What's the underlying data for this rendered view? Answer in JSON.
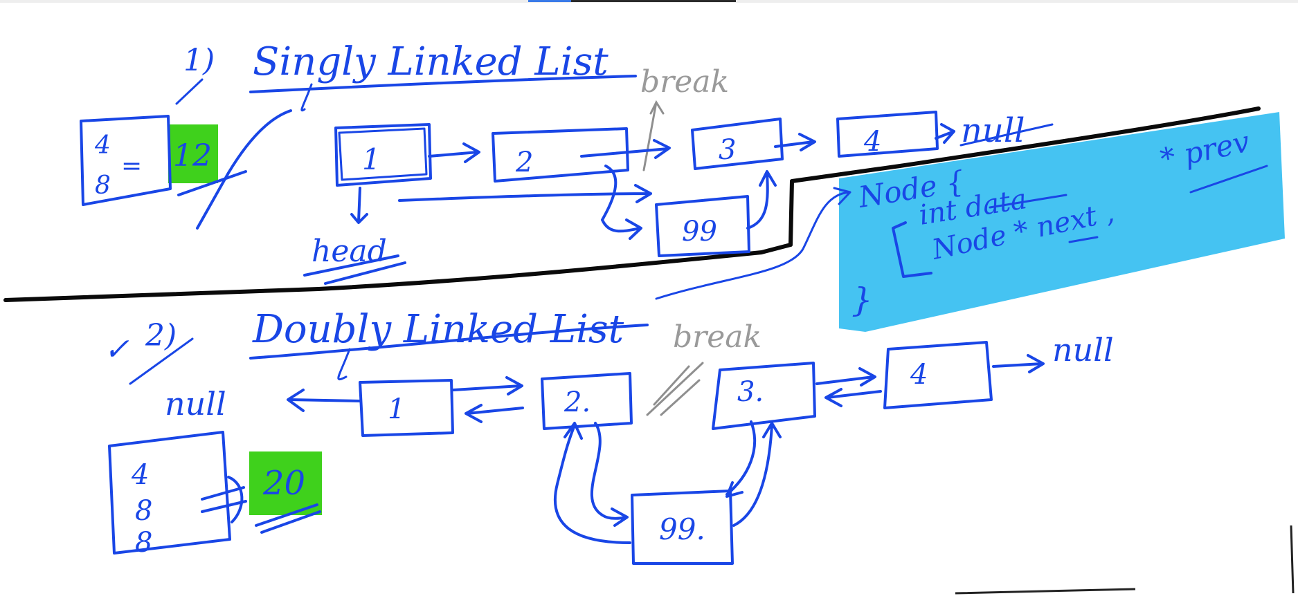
{
  "section1": {
    "number": "1)",
    "title": "Singly Linked List",
    "break_note": "break",
    "head_label": "head",
    "null_label": "null",
    "calc_top": "4",
    "calc_bottom": "8",
    "calc_equals": "=",
    "calc_result": "12",
    "nodes": [
      "1",
      "2",
      "3",
      "4"
    ],
    "inserted_node": "99"
  },
  "section2": {
    "number": "2)",
    "check_mark": "✓",
    "title": "Doubly Linked List",
    "break_note": "break",
    "null_left": "null",
    "null_right": "null",
    "calc_values": [
      "4",
      "8",
      "8"
    ],
    "calc_result": "20",
    "nodes": [
      "1",
      "2.",
      "3.",
      "4"
    ],
    "inserted_node": "99."
  },
  "struct_note": {
    "line1": "Node {",
    "fields": "int data",
    "next_ptr": "Node * next ,",
    "prev_ptr": "* prev",
    "close": "}"
  },
  "colors": {
    "ink": "#1946e6",
    "highlight_green": "#3fd11c",
    "highlight_blue": "#45c3f2",
    "divider": "#0a0a0a",
    "pencil": "#9a9a9a"
  }
}
